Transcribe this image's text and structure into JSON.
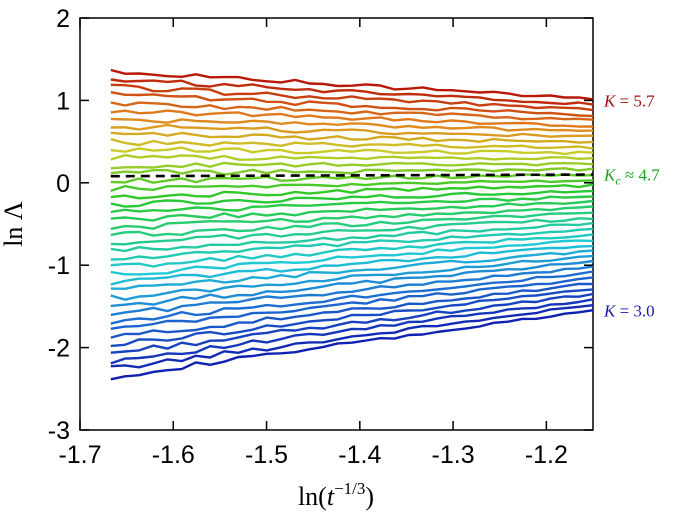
{
  "chart_data": {
    "type": "line",
    "title": "",
    "xlabel": "ln(t^{-1/3})",
    "ylabel": "ln Λ",
    "xlim": [
      -1.7,
      -1.15
    ],
    "ylim": [
      -3,
      2
    ],
    "x_ticks": [
      "-1.7",
      "-1.6",
      "-1.5",
      "-1.4",
      "-1.3",
      "-1.2"
    ],
    "y_ticks": [
      "-3",
      "-2",
      "-1",
      "0",
      "1",
      "2"
    ],
    "x_range": [
      -1.667,
      -1.15
    ],
    "reference_line": {
      "style": "dashed",
      "color": "#000000",
      "y_start": 0.08,
      "y_end": 0.1
    },
    "family": {
      "parameter": "K",
      "K_min": 3.0,
      "K_max": 5.7,
      "count": 40,
      "start_y_top": 1.35,
      "start_y_bottom": -2.35,
      "end_y_top": 1.02,
      "end_y_bottom": -1.55,
      "color_low": "#1020b0",
      "color_high": "#b81808"
    },
    "annotations": [
      {
        "text_italic": "K",
        "text_sub": "",
        "text_rest": " = 5.7",
        "y": 1.0,
        "color": "#a01010"
      },
      {
        "text_italic": "K",
        "text_sub": "c",
        "text_rest": " ≈ 4.7",
        "y": 0.1,
        "color": "#20a020"
      },
      {
        "text_italic": "K",
        "text_sub": "",
        "text_rest": " = 3.0",
        "y": -1.55,
        "color": "#1a1aa0"
      }
    ]
  }
}
